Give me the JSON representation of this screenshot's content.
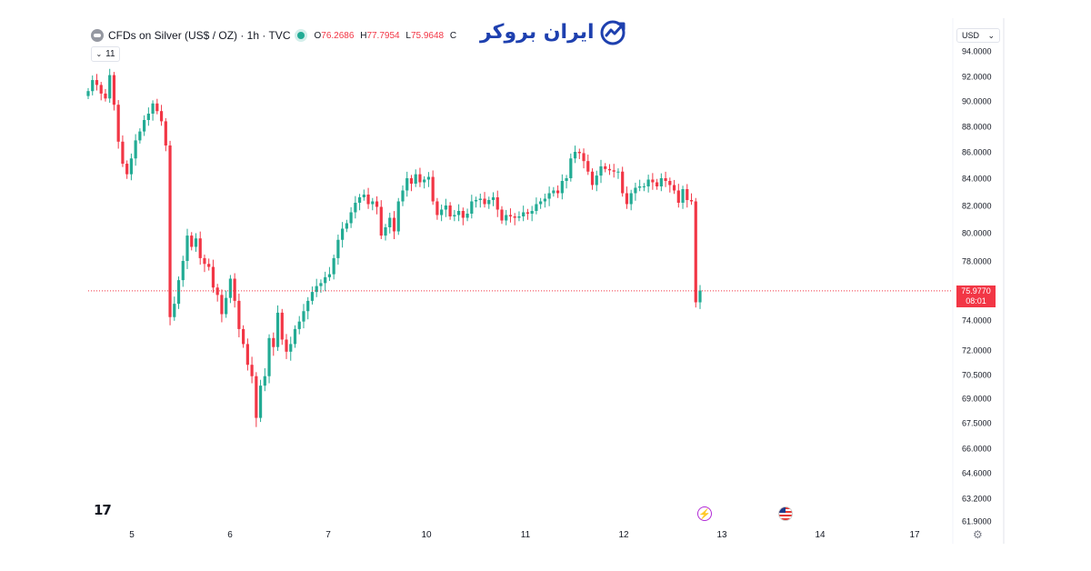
{
  "header": {
    "symbol_title": "CFDs on Silver (US$ / OZ) · 1h · TVC",
    "open_key": "O",
    "open": "76.2686",
    "high_key": "H",
    "high": "77.7954",
    "low_key": "L",
    "low": "75.9648",
    "close_key": "C",
    "interval_chip": "11"
  },
  "brand": {
    "logo_text": "ایران بروکر"
  },
  "currency_selector": {
    "value": "USD",
    "chevron": "⌄"
  },
  "footer": {
    "tv_logo": "17",
    "gear_icon": "⚙"
  },
  "colors": {
    "up": "#22ab94",
    "down": "#f23645",
    "price_line": "#f23645",
    "axis_text": "#131722",
    "brand": "#1e40af"
  },
  "chart_data": {
    "type": "candlestick",
    "title": "CFDs on Silver (US$ / OZ) · 1h · TVC",
    "x_tick_labels": [
      "5",
      "6",
      "7",
      "10",
      "11",
      "12",
      "13",
      "14",
      "17"
    ],
    "y_tick_labels": [
      "94.0000",
      "92.0000",
      "90.0000",
      "88.0000",
      "86.0000",
      "84.0000",
      "82.0000",
      "80.0000",
      "78.0000",
      "74.0000",
      "72.0000",
      "70.5000",
      "69.0000",
      "67.5000",
      "66.0000",
      "64.6000",
      "63.2000",
      "61.9000"
    ],
    "last_price": "75.9770",
    "countdown": "08:01",
    "events": [
      "economic-event-icon",
      "us-flag-icon"
    ],
    "series_close": [
      90.8,
      91.7,
      91.3,
      90.6,
      90.2,
      92.1,
      89.7,
      86.8,
      85.1,
      84.3,
      85.5,
      86.9,
      87.6,
      88.5,
      89.0,
      89.8,
      89.2,
      88.4,
      86.5,
      74.2,
      75.1,
      76.7,
      78.0,
      79.8,
      79.0,
      79.6,
      78.2,
      77.8,
      77.6,
      76.2,
      75.7,
      74.4,
      75.5,
      76.8,
      75.3,
      73.4,
      72.4,
      71.1,
      70.4,
      67.8,
      69.8,
      70.4,
      72.8,
      72.2,
      74.5,
      72.7,
      71.9,
      72.4,
      73.4,
      73.9,
      74.6,
      75.3,
      75.9,
      76.3,
      76.5,
      76.9,
      77.1,
      78.2,
      79.5,
      80.3,
      80.7,
      81.5,
      82.2,
      82.6,
      82.8,
      82.1,
      82.3,
      81.9,
      79.8,
      80.4,
      81.1,
      80.1,
      82.3,
      83.1,
      84.0,
      83.6,
      84.3,
      83.7,
      83.9,
      84.1,
      82.3,
      81.3,
      81.7,
      82.0,
      81.2,
      81.3,
      81.6,
      81.1,
      81.4,
      82.3,
      82.4,
      82.5,
      82.1,
      82.4,
      82.6,
      81.7,
      80.9,
      81.3,
      81.2,
      81.1,
      81.2,
      81.5,
      81.4,
      81.6,
      82.1,
      82.3,
      82.5,
      82.9,
      83.1,
      82.9,
      83.8,
      84.0,
      85.5,
      86.0,
      85.9,
      85.3,
      84.5,
      83.5,
      84.2,
      84.9,
      84.7,
      84.6,
      84.5,
      84.5,
      82.9,
      82.1,
      82.9,
      83.3,
      83.4,
      83.4,
      83.9,
      83.7,
      83.4,
      84.0,
      83.8,
      83.5,
      83.1,
      82.2,
      83.2,
      82.4,
      82.3,
      75.2,
      76.0
    ]
  }
}
